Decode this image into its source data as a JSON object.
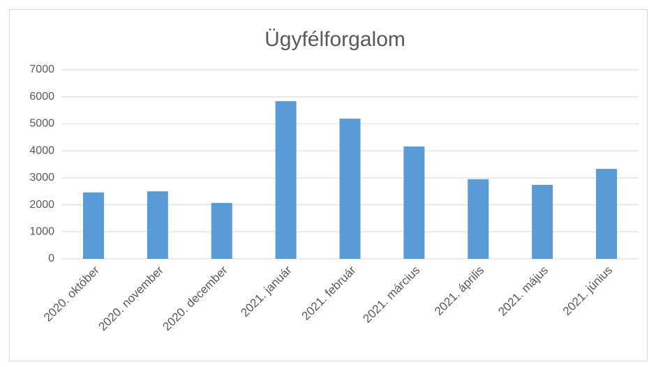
{
  "chart_data": {
    "type": "bar",
    "title": "Ügyfélforgalom",
    "categories": [
      "2020. október",
      "2020. november",
      "2020. december",
      "2021. január",
      "2021. február",
      "2021. március",
      "2021. április",
      "2021. május",
      "2021. június"
    ],
    "values": [
      2460,
      2500,
      2070,
      5840,
      5190,
      4160,
      2950,
      2740,
      3330
    ],
    "color": "#5b9bd5",
    "ylim": [
      0,
      7000
    ],
    "yticks": [
      0,
      1000,
      2000,
      3000,
      4000,
      5000,
      6000,
      7000
    ],
    "grid": true
  }
}
